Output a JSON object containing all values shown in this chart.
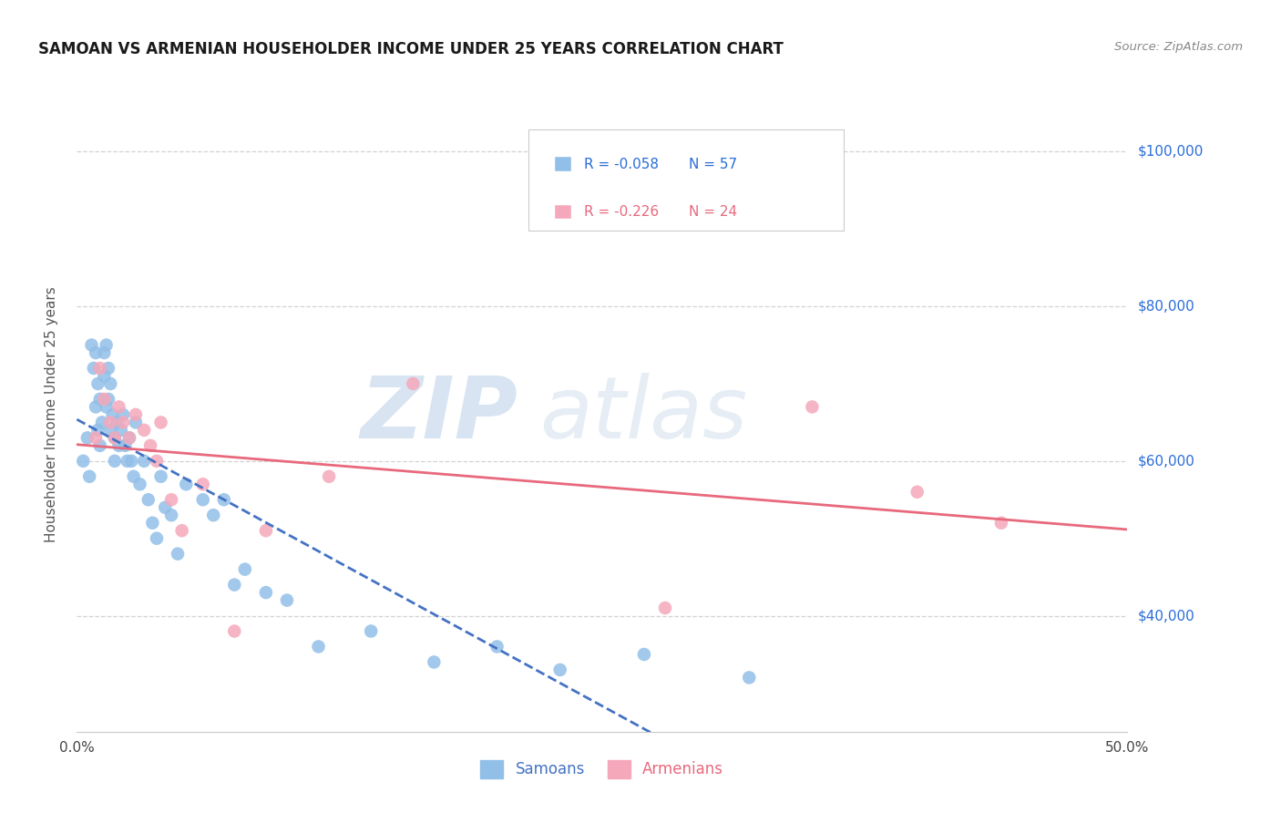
{
  "title": "SAMOAN VS ARMENIAN HOUSEHOLDER INCOME UNDER 25 YEARS CORRELATION CHART",
  "source": "Source: ZipAtlas.com",
  "ylabel": "Householder Income Under 25 years",
  "xlim": [
    0.0,
    0.5
  ],
  "ylim": [
    25000,
    107000
  ],
  "yticks": [
    40000,
    60000,
    80000,
    100000
  ],
  "ytick_labels": [
    "$40,000",
    "$60,000",
    "$80,000",
    "$100,000"
  ],
  "xticks": [
    0.0,
    0.1,
    0.2,
    0.3,
    0.4,
    0.5
  ],
  "xtick_labels": [
    "0.0%",
    "",
    "",
    "",
    "",
    "50.0%"
  ],
  "background_color": "#ffffff",
  "grid_color": "#c8c8c8",
  "samoans_color": "#92bfe8",
  "armenians_color": "#f5a8ba",
  "samoans_line_color": "#4472c4",
  "armenians_line_color": "#e8697d",
  "legend_r_samoan": "-0.058",
  "legend_n_samoan": "57",
  "legend_r_armenian": "-0.226",
  "legend_n_armenian": "24",
  "watermark_zip": "ZIP",
  "watermark_atlas": "atlas",
  "samoans_x": [
    0.003,
    0.005,
    0.006,
    0.007,
    0.008,
    0.009,
    0.009,
    0.01,
    0.01,
    0.011,
    0.011,
    0.012,
    0.013,
    0.013,
    0.014,
    0.014,
    0.015,
    0.015,
    0.016,
    0.016,
    0.017,
    0.018,
    0.018,
    0.019,
    0.02,
    0.021,
    0.022,
    0.023,
    0.024,
    0.025,
    0.026,
    0.027,
    0.028,
    0.03,
    0.032,
    0.034,
    0.036,
    0.038,
    0.04,
    0.042,
    0.045,
    0.048,
    0.052,
    0.06,
    0.065,
    0.07,
    0.075,
    0.08,
    0.09,
    0.1,
    0.115,
    0.14,
    0.17,
    0.2,
    0.23,
    0.27,
    0.32
  ],
  "samoans_y": [
    60000,
    63000,
    58000,
    75000,
    72000,
    67000,
    74000,
    64000,
    70000,
    68000,
    62000,
    65000,
    74000,
    71000,
    67000,
    75000,
    72000,
    68000,
    64000,
    70000,
    66000,
    60000,
    63000,
    65000,
    62000,
    64000,
    66000,
    62000,
    60000,
    63000,
    60000,
    58000,
    65000,
    57000,
    60000,
    55000,
    52000,
    50000,
    58000,
    54000,
    53000,
    48000,
    57000,
    55000,
    53000,
    55000,
    44000,
    46000,
    43000,
    42000,
    36000,
    38000,
    34000,
    36000,
    33000,
    35000,
    32000
  ],
  "armenians_x": [
    0.009,
    0.011,
    0.013,
    0.016,
    0.018,
    0.02,
    0.022,
    0.025,
    0.028,
    0.032,
    0.035,
    0.038,
    0.04,
    0.045,
    0.05,
    0.06,
    0.075,
    0.09,
    0.12,
    0.16,
    0.28,
    0.35,
    0.4,
    0.44
  ],
  "armenians_y": [
    63000,
    72000,
    68000,
    65000,
    63000,
    67000,
    65000,
    63000,
    66000,
    64000,
    62000,
    60000,
    65000,
    55000,
    51000,
    57000,
    38000,
    51000,
    58000,
    70000,
    41000,
    67000,
    56000,
    52000
  ]
}
